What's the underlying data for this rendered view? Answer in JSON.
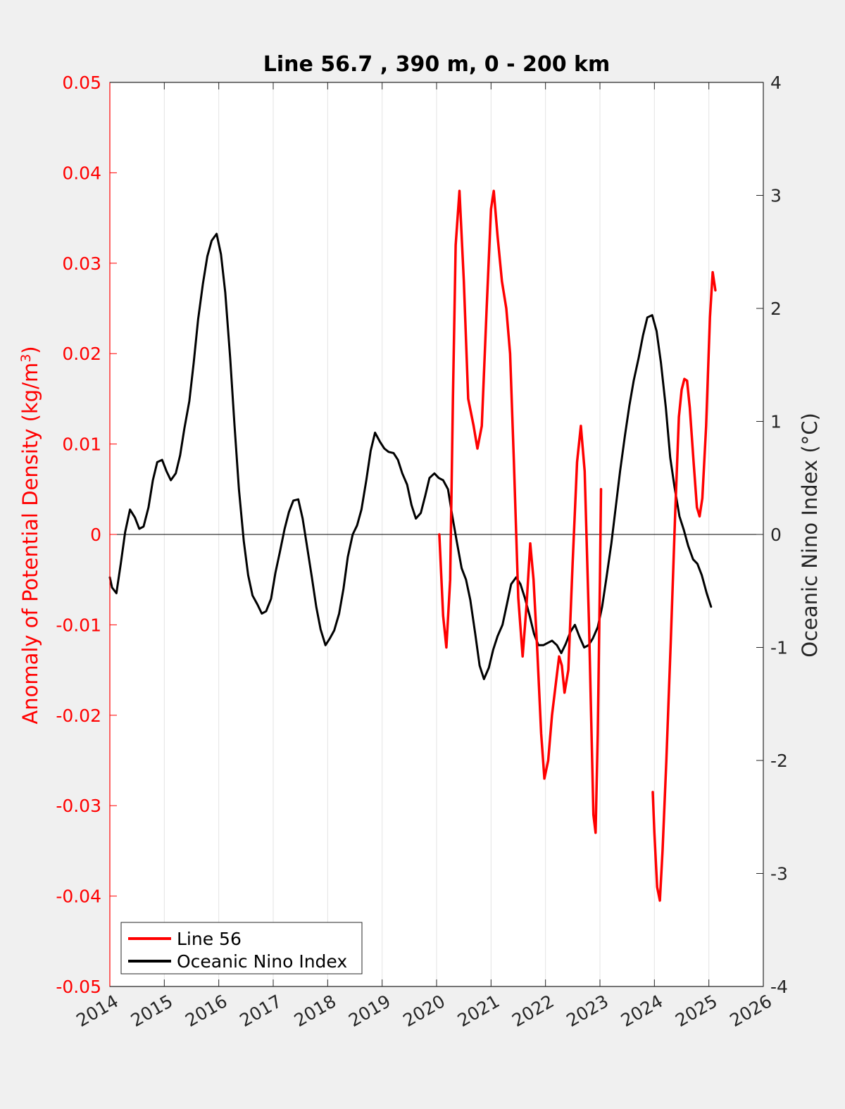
{
  "chart_data": {
    "type": "line",
    "title": "Line 56.7 , 390 m, 0 - 200 km",
    "ylabel_left": "Anomaly of Potential Density (kg/m",
    "ylabel_left_sup": "3",
    "ylabel_left_close": ")",
    "ylabel_right": "Oceanic Nino Index (°C)",
    "xlim": [
      2014,
      2026
    ],
    "ylim_left": [
      -0.05,
      0.05
    ],
    "ylim_right": [
      -4,
      4
    ],
    "x_ticks": [
      "2014",
      "2015",
      "2016",
      "2017",
      "2018",
      "2019",
      "2020",
      "2021",
      "2022",
      "2023",
      "2024",
      "2025",
      "2026"
    ],
    "y_left_ticks": [
      "0.05",
      "0.04",
      "0.03",
      "0.02",
      "0.01",
      "0",
      "-0.01",
      "-0.02",
      "-0.03",
      "-0.04",
      "-0.05"
    ],
    "y_right_ticks": [
      "4",
      "3",
      "2",
      "1",
      "0",
      "-1",
      "-2",
      "-3",
      "-4"
    ],
    "grid": "vertical",
    "zero_line": true,
    "legend_position": "bottom-left",
    "colors": {
      "line56": "#ff0000",
      "oni": "#000000",
      "axis_left": "#ff0000",
      "axis_right": "#262626"
    },
    "series": [
      {
        "name": "Line 56",
        "axis": "left",
        "segments": [
          [
            [
              2020.05,
              0.0
            ],
            [
              2020.12,
              -0.009
            ],
            [
              2020.18,
              -0.0125
            ],
            [
              2020.25,
              -0.005
            ],
            [
              2020.3,
              0.015
            ],
            [
              2020.35,
              0.032
            ],
            [
              2020.42,
              0.038
            ],
            [
              2020.5,
              0.028
            ],
            [
              2020.58,
              0.015
            ],
            [
              2020.68,
              0.012
            ],
            [
              2020.75,
              0.0095
            ],
            [
              2020.83,
              0.012
            ],
            [
              2020.92,
              0.025
            ],
            [
              2021.0,
              0.036
            ],
            [
              2021.05,
              0.038
            ],
            [
              2021.12,
              0.033
            ],
            [
              2021.2,
              0.028
            ],
            [
              2021.28,
              0.025
            ],
            [
              2021.35,
              0.02
            ],
            [
              2021.42,
              0.008
            ],
            [
              2021.5,
              -0.007
            ],
            [
              2021.58,
              -0.0135
            ],
            [
              2021.65,
              -0.008
            ],
            [
              2021.72,
              -0.001
            ],
            [
              2021.78,
              -0.005
            ],
            [
              2021.85,
              -0.013
            ],
            [
              2021.92,
              -0.022
            ],
            [
              2021.98,
              -0.027
            ],
            [
              2022.05,
              -0.025
            ],
            [
              2022.12,
              -0.02
            ],
            [
              2022.2,
              -0.016
            ],
            [
              2022.25,
              -0.0135
            ],
            [
              2022.3,
              -0.0145
            ],
            [
              2022.35,
              -0.0175
            ],
            [
              2022.42,
              -0.015
            ],
            [
              2022.5,
              -0.003
            ],
            [
              2022.58,
              0.008
            ],
            [
              2022.65,
              0.012
            ],
            [
              2022.72,
              0.007
            ],
            [
              2022.8,
              -0.01
            ],
            [
              2022.88,
              -0.031
            ],
            [
              2022.92,
              -0.033
            ],
            [
              2022.96,
              -0.022
            ],
            [
              2023.0,
              -0.005
            ],
            [
              2023.02,
              0.005
            ]
          ],
          [
            [
              2023.97,
              -0.0285
            ],
            [
              2024.0,
              -0.033
            ],
            [
              2024.05,
              -0.039
            ],
            [
              2024.1,
              -0.0405
            ],
            [
              2024.15,
              -0.035
            ],
            [
              2024.22,
              -0.025
            ],
            [
              2024.3,
              -0.012
            ],
            [
              2024.38,
              0.002
            ],
            [
              2024.45,
              0.013
            ],
            [
              2024.5,
              0.016
            ],
            [
              2024.55,
              0.0172
            ],
            [
              2024.6,
              0.017
            ],
            [
              2024.65,
              0.014
            ],
            [
              2024.72,
              0.008
            ],
            [
              2024.78,
              0.003
            ],
            [
              2024.83,
              0.002
            ],
            [
              2024.88,
              0.004
            ],
            [
              2024.95,
              0.012
            ],
            [
              2025.02,
              0.024
            ],
            [
              2025.07,
              0.029
            ],
            [
              2025.12,
              0.027
            ]
          ]
        ]
      },
      {
        "name": "Oceanic Nino Index",
        "axis": "right",
        "segments": [
          [
            [
              2014.0,
              -0.38
            ],
            [
              2014.04,
              -0.47
            ],
            [
              2014.12,
              -0.52
            ],
            [
              2014.2,
              -0.26
            ],
            [
              2014.28,
              0.02
            ],
            [
              2014.37,
              0.22
            ],
            [
              2014.46,
              0.15
            ],
            [
              2014.54,
              0.05
            ],
            [
              2014.62,
              0.07
            ],
            [
              2014.71,
              0.24
            ],
            [
              2014.79,
              0.48
            ],
            [
              2014.87,
              0.64
            ],
            [
              2014.96,
              0.66
            ],
            [
              2015.04,
              0.56
            ],
            [
              2015.12,
              0.48
            ],
            [
              2015.21,
              0.54
            ],
            [
              2015.29,
              0.7
            ],
            [
              2015.37,
              0.94
            ],
            [
              2015.46,
              1.18
            ],
            [
              2015.54,
              1.52
            ],
            [
              2015.62,
              1.9
            ],
            [
              2015.71,
              2.22
            ],
            [
              2015.79,
              2.46
            ],
            [
              2015.87,
              2.6
            ],
            [
              2015.96,
              2.66
            ],
            [
              2016.04,
              2.48
            ],
            [
              2016.12,
              2.14
            ],
            [
              2016.21,
              1.56
            ],
            [
              2016.29,
              0.96
            ],
            [
              2016.37,
              0.4
            ],
            [
              2016.46,
              -0.06
            ],
            [
              2016.54,
              -0.36
            ],
            [
              2016.62,
              -0.54
            ],
            [
              2016.71,
              -0.62
            ],
            [
              2016.79,
              -0.7
            ],
            [
              2016.87,
              -0.68
            ],
            [
              2016.96,
              -0.57
            ],
            [
              2017.04,
              -0.34
            ],
            [
              2017.12,
              -0.16
            ],
            [
              2017.21,
              0.05
            ],
            [
              2017.29,
              0.2
            ],
            [
              2017.37,
              0.3
            ],
            [
              2017.46,
              0.31
            ],
            [
              2017.54,
              0.14
            ],
            [
              2017.62,
              -0.1
            ],
            [
              2017.71,
              -0.38
            ],
            [
              2017.79,
              -0.64
            ],
            [
              2017.87,
              -0.84
            ],
            [
              2017.96,
              -0.98
            ],
            [
              2018.04,
              -0.92
            ],
            [
              2018.12,
              -0.85
            ],
            [
              2018.21,
              -0.7
            ],
            [
              2018.29,
              -0.48
            ],
            [
              2018.37,
              -0.2
            ],
            [
              2018.46,
              0.0
            ],
            [
              2018.54,
              0.08
            ],
            [
              2018.62,
              0.22
            ],
            [
              2018.71,
              0.48
            ],
            [
              2018.79,
              0.74
            ],
            [
              2018.87,
              0.9
            ],
            [
              2018.96,
              0.82
            ],
            [
              2019.04,
              0.76
            ],
            [
              2019.12,
              0.73
            ],
            [
              2019.21,
              0.72
            ],
            [
              2019.29,
              0.66
            ],
            [
              2019.37,
              0.54
            ],
            [
              2019.46,
              0.44
            ],
            [
              2019.54,
              0.26
            ],
            [
              2019.62,
              0.14
            ],
            [
              2019.71,
              0.19
            ],
            [
              2019.79,
              0.34
            ],
            [
              2019.87,
              0.5
            ],
            [
              2019.96,
              0.54
            ],
            [
              2020.04,
              0.5
            ],
            [
              2020.12,
              0.48
            ],
            [
              2020.21,
              0.4
            ],
            [
              2020.29,
              0.16
            ],
            [
              2020.37,
              -0.06
            ],
            [
              2020.46,
              -0.3
            ],
            [
              2020.54,
              -0.4
            ],
            [
              2020.62,
              -0.58
            ],
            [
              2020.71,
              -0.88
            ],
            [
              2020.79,
              -1.16
            ],
            [
              2020.87,
              -1.28
            ],
            [
              2020.96,
              -1.18
            ],
            [
              2021.04,
              -1.02
            ],
            [
              2021.12,
              -0.9
            ],
            [
              2021.21,
              -0.8
            ],
            [
              2021.29,
              -0.62
            ],
            [
              2021.37,
              -0.44
            ],
            [
              2021.46,
              -0.38
            ],
            [
              2021.54,
              -0.44
            ],
            [
              2021.62,
              -0.56
            ],
            [
              2021.71,
              -0.72
            ],
            [
              2021.79,
              -0.88
            ],
            [
              2021.87,
              -0.98
            ],
            [
              2021.96,
              -0.98
            ],
            [
              2022.04,
              -0.96
            ],
            [
              2022.12,
              -0.94
            ],
            [
              2022.21,
              -0.98
            ],
            [
              2022.29,
              -1.05
            ],
            [
              2022.37,
              -0.97
            ],
            [
              2022.46,
              -0.86
            ],
            [
              2022.54,
              -0.8
            ],
            [
              2022.62,
              -0.9
            ],
            [
              2022.71,
              -1.0
            ],
            [
              2022.79,
              -0.98
            ],
            [
              2022.87,
              -0.92
            ],
            [
              2022.96,
              -0.82
            ],
            [
              2023.04,
              -0.64
            ],
            [
              2023.12,
              -0.38
            ],
            [
              2023.21,
              -0.08
            ],
            [
              2023.29,
              0.24
            ],
            [
              2023.37,
              0.56
            ],
            [
              2023.46,
              0.88
            ],
            [
              2023.54,
              1.14
            ],
            [
              2023.62,
              1.36
            ],
            [
              2023.71,
              1.56
            ],
            [
              2023.79,
              1.76
            ],
            [
              2023.87,
              1.92
            ],
            [
              2023.96,
              1.94
            ],
            [
              2024.04,
              1.8
            ],
            [
              2024.12,
              1.52
            ],
            [
              2024.21,
              1.12
            ],
            [
              2024.29,
              0.68
            ],
            [
              2024.37,
              0.42
            ],
            [
              2024.46,
              0.16
            ],
            [
              2024.54,
              0.04
            ],
            [
              2024.62,
              -0.1
            ],
            [
              2024.71,
              -0.22
            ],
            [
              2024.79,
              -0.26
            ],
            [
              2024.87,
              -0.36
            ],
            [
              2024.96,
              -0.52
            ],
            [
              2025.04,
              -0.64
            ]
          ]
        ]
      }
    ]
  }
}
